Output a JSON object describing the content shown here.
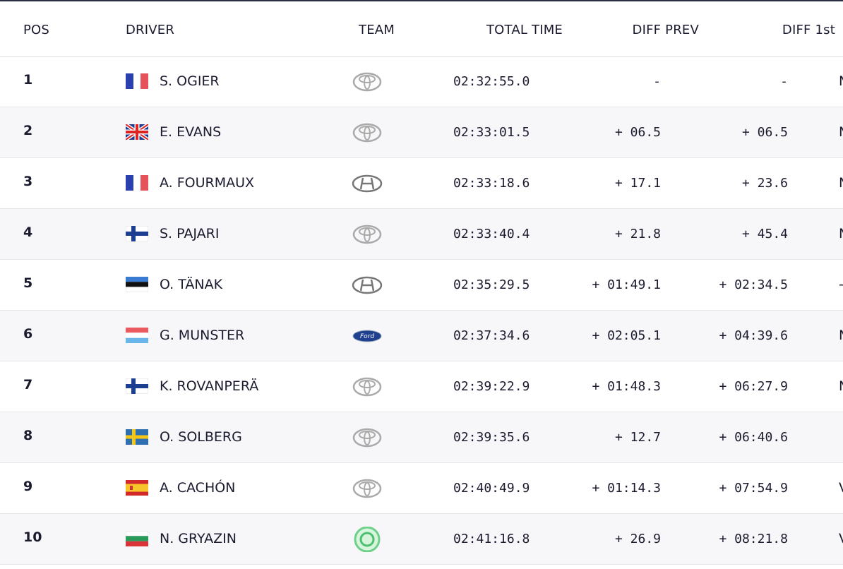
{
  "columns": [
    "POS",
    "DRIVER",
    "TEAM",
    "TOTAL TIME",
    "DIFF PREV",
    "DIFF 1st"
  ],
  "rows": [
    [
      "1",
      "S. OGIER",
      "02:32:55.0",
      "-",
      "-",
      "N"
    ],
    [
      "2",
      "E. EVANS",
      "02:33:01.5",
      "+ 06.5",
      "+ 06.5",
      "N"
    ],
    [
      "3",
      "A. FOURMAUX",
      "02:33:18.6",
      "+ 17.1",
      "+ 23.6",
      "N"
    ],
    [
      "4",
      "S. PAJARI",
      "02:33:40.4",
      "+ 21.8",
      "+ 45.4",
      "N"
    ],
    [
      "5",
      "O. TÄNAK",
      "02:35:29.5",
      "+ 01:49.1",
      "+ 02:34.5",
      "-"
    ],
    [
      "6",
      "G. MUNSTER",
      "02:37:34.6",
      "+ 02:05.1",
      "+ 04:39.6",
      "N"
    ],
    [
      "7",
      "K. ROVANPERÄ",
      "02:39:22.9",
      "+ 01:48.3",
      "+ 06:27.9",
      "N"
    ],
    [
      "8",
      "O. SOLBERG",
      "02:39:35.6",
      "+ 12.7",
      "+ 06:40.6",
      null
    ],
    [
      "9",
      "A. CACHÓN",
      "02:40:49.9",
      "+ 01:14.3",
      "+ 07:54.9",
      "V"
    ],
    [
      "10",
      "N. GRYAZIN",
      "02:41:16.8",
      "+ 26.9",
      "+ 08:21.8",
      "V"
    ]
  ]
}
